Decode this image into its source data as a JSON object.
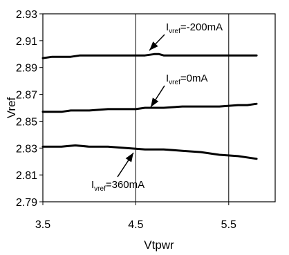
{
  "chart_data": {
    "type": "line",
    "title": "",
    "xlabel": "Vtpwr",
    "ylabel": "Vref",
    "xlim": [
      3.5,
      6.0
    ],
    "ylim": [
      2.79,
      2.93
    ],
    "xticks": [
      "3.5",
      "4.5",
      "5.5"
    ],
    "xtick_values": [
      3.5,
      4.5,
      5.5
    ],
    "yticks": [
      "2.93",
      "2.91",
      "2.89",
      "2.87",
      "2.85",
      "2.83",
      "2.81",
      "2.79"
    ],
    "ytick_values": [
      2.93,
      2.91,
      2.89,
      2.87,
      2.85,
      2.83,
      2.81,
      2.79
    ],
    "grid": {
      "vertical_x": [
        4.5,
        5.5
      ],
      "horizontal": false
    },
    "line_color": "#000000",
    "series": [
      {
        "name": "Ivref=-200mA",
        "x": [
          3.5,
          3.6,
          3.7,
          3.8,
          3.9,
          4.0,
          4.2,
          4.4,
          4.6,
          4.7,
          4.75,
          4.8,
          5.0,
          5.2,
          5.4,
          5.6,
          5.8
        ],
        "y": [
          2.897,
          2.898,
          2.898,
          2.898,
          2.899,
          2.899,
          2.899,
          2.899,
          2.899,
          2.9,
          2.9,
          2.899,
          2.899,
          2.899,
          2.899,
          2.899,
          2.899
        ]
      },
      {
        "name": "Ivref=0mA",
        "x": [
          3.5,
          3.7,
          3.8,
          4.0,
          4.2,
          4.4,
          4.5,
          4.6,
          4.8,
          5.0,
          5.2,
          5.4,
          5.6,
          5.7,
          5.8
        ],
        "y": [
          2.857,
          2.857,
          2.858,
          2.858,
          2.859,
          2.859,
          2.859,
          2.86,
          2.86,
          2.861,
          2.861,
          2.861,
          2.862,
          2.862,
          2.863
        ]
      },
      {
        "name": "Ivref=360mA",
        "x": [
          3.5,
          3.7,
          3.85,
          4.0,
          4.2,
          4.4,
          4.6,
          4.8,
          5.0,
          5.2,
          5.4,
          5.6,
          5.8
        ],
        "y": [
          2.831,
          2.831,
          2.832,
          2.831,
          2.831,
          2.83,
          2.829,
          2.829,
          2.828,
          2.827,
          2.825,
          2.824,
          2.822
        ]
      }
    ],
    "annotations": [
      {
        "main": "I",
        "sub": "vref",
        "rest": "=-200mA",
        "text": "Ivref=-200mA",
        "series": "Ivref=-200mA"
      },
      {
        "main": "I",
        "sub": "vref",
        "rest": "=0mA",
        "text": "Ivref=0mA",
        "series": "Ivref=0mA"
      },
      {
        "main": "I",
        "sub": "vref",
        "rest": "=360mA",
        "text": "Ivref=360mA",
        "series": "Ivref=360mA"
      }
    ]
  }
}
